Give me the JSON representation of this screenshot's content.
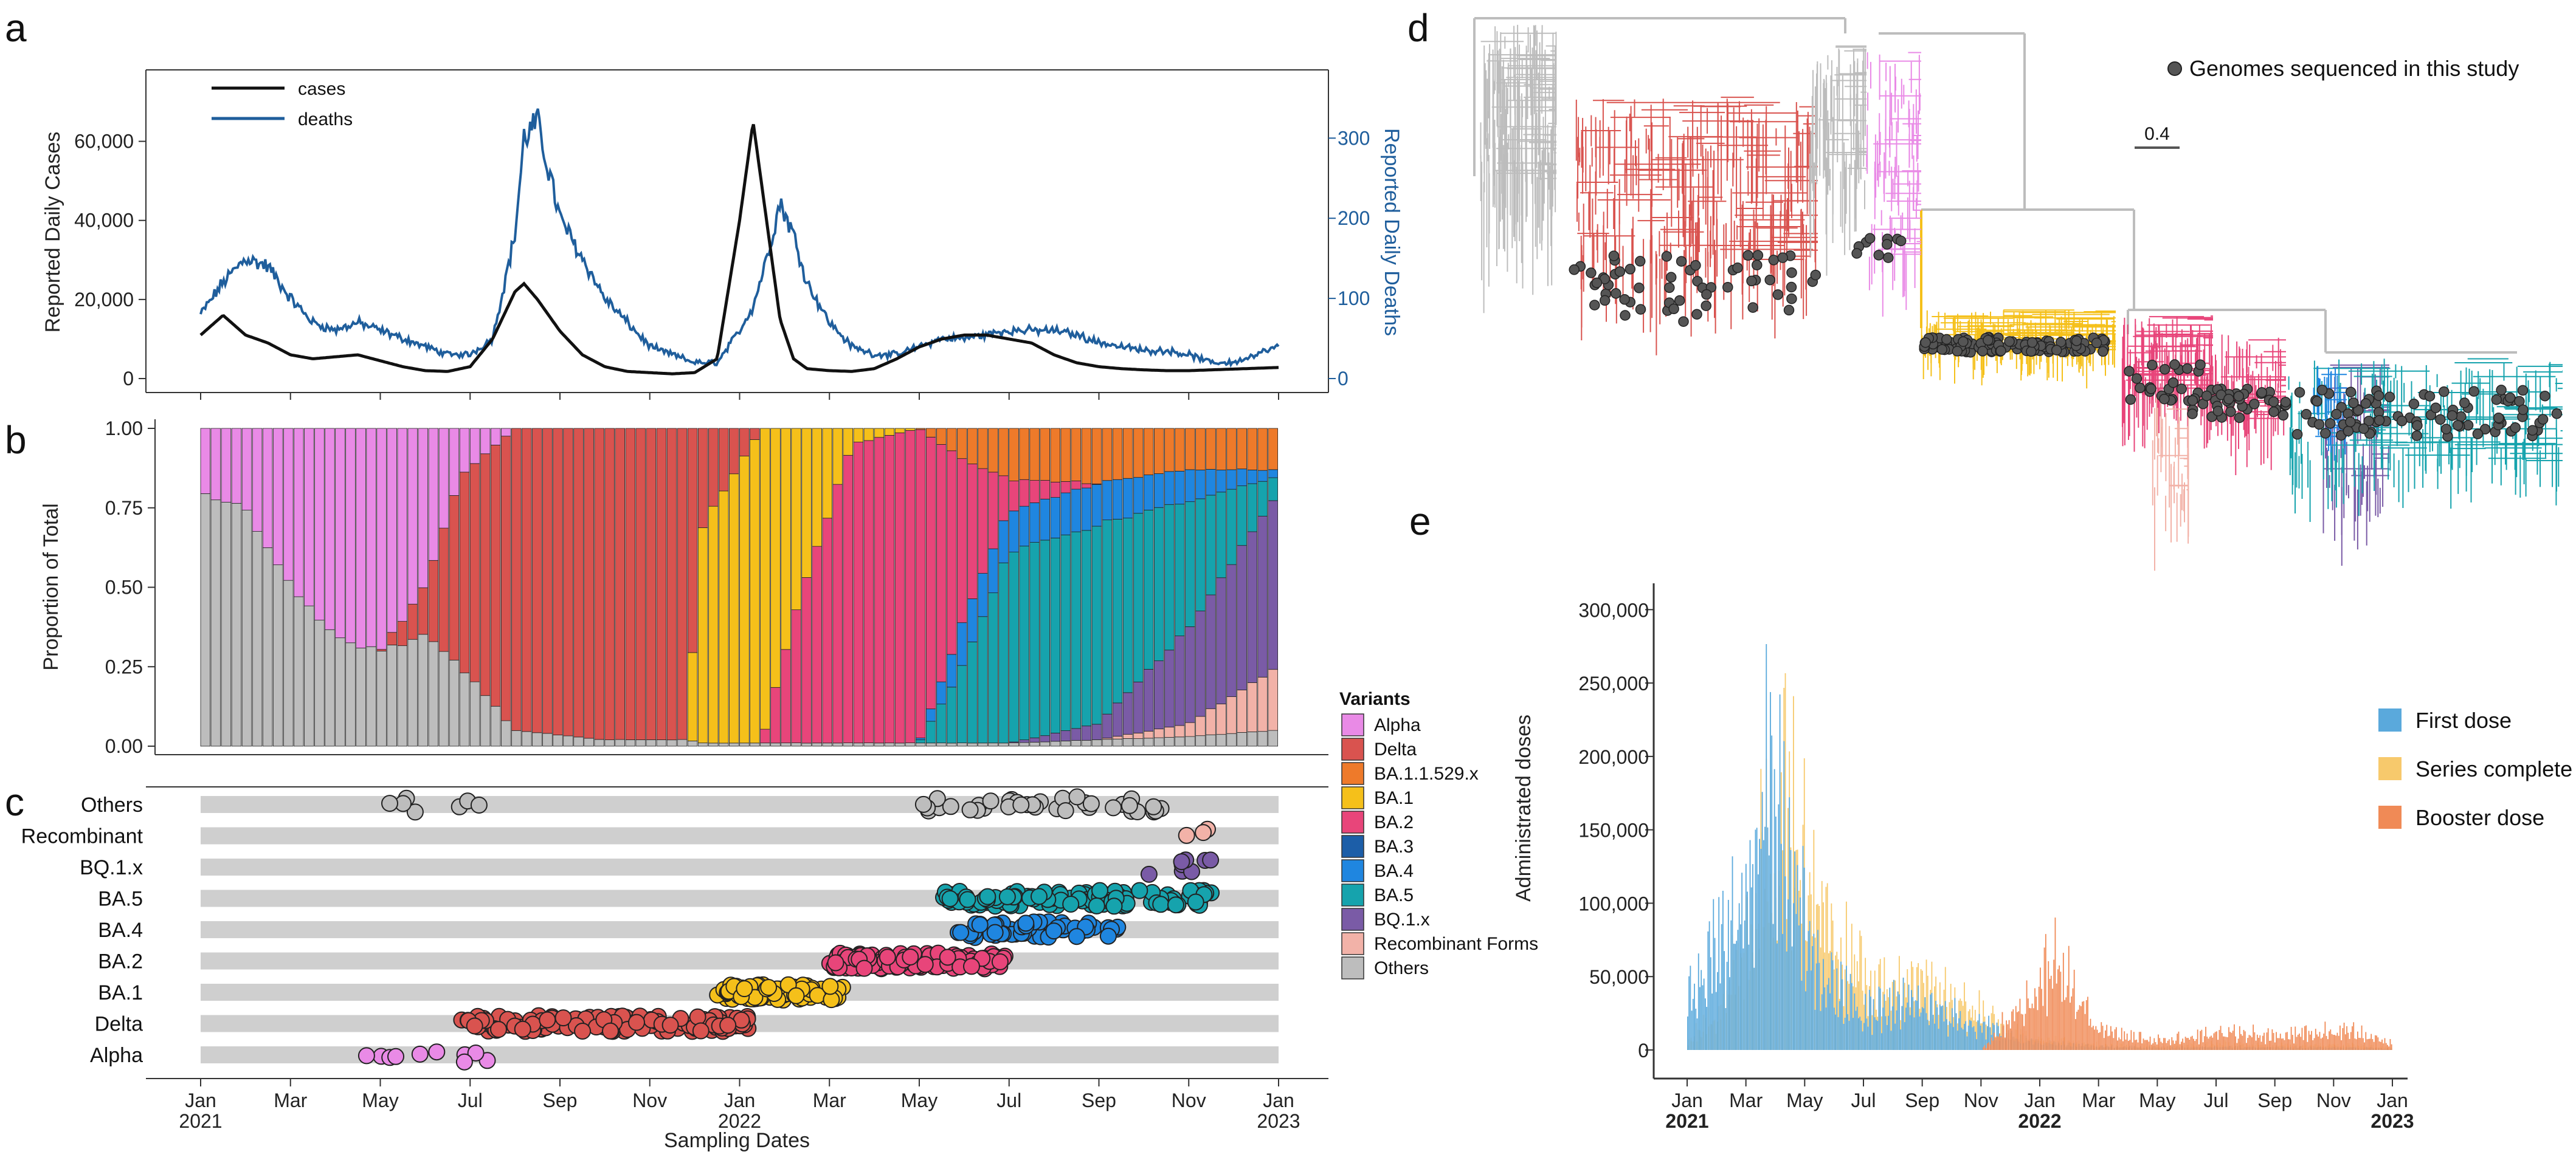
{
  "panels": {
    "a": "a",
    "b": "b",
    "c": "c",
    "d": "d",
    "e": "e"
  },
  "colors": {
    "Alpha": "#e98ae6",
    "Delta": "#d9534f",
    "BA.1.1.529.x": "#ee7a2a",
    "BA.1": "#f5c01a",
    "BA.2": "#e8457a",
    "BA.3": "#1c5ea8",
    "BA.4": "#1f86e0",
    "BA.5": "#16a3ad",
    "BQ.1.x": "#7a5ba6",
    "Recombinant Forms": "#f2b2a8",
    "Others": "#bdbdbd",
    "cases": "#111111",
    "deaths": "#1f5e9c",
    "first": "#5aa9dc",
    "series": "#f7c96c",
    "booster": "#f08a56"
  },
  "time_axis": {
    "ticks": [
      {
        "m": 0,
        "label": "Jan",
        "year": "2021"
      },
      {
        "m": 2,
        "label": "Mar"
      },
      {
        "m": 4,
        "label": "May"
      },
      {
        "m": 6,
        "label": "Jul"
      },
      {
        "m": 8,
        "label": "Sep"
      },
      {
        "m": 10,
        "label": "Nov"
      },
      {
        "m": 12,
        "label": "Jan",
        "year": "2022"
      },
      {
        "m": 14,
        "label": "Mar"
      },
      {
        "m": 16,
        "label": "May"
      },
      {
        "m": 18,
        "label": "Jul"
      },
      {
        "m": 20,
        "label": "Sep"
      },
      {
        "m": 22,
        "label": "Nov"
      },
      {
        "m": 24,
        "label": "Jan",
        "year": "2023"
      }
    ],
    "xlabel": "Sampling Dates"
  },
  "chart_data": [
    {
      "id": "a",
      "type": "line",
      "title": "",
      "ylabel": "Reported Daily Cases",
      "y2label": "Reported Daily Deaths",
      "ylim": [
        0,
        75000
      ],
      "y2lim": [
        0,
        370
      ],
      "yticks": [
        "0",
        "20,000",
        "40,000",
        "60,000"
      ],
      "yticks_vals": [
        0,
        20000,
        40000,
        60000
      ],
      "y2ticks": [
        "0",
        "100",
        "200",
        "300"
      ],
      "y2ticks_vals": [
        0,
        100,
        200,
        300
      ],
      "legend": [
        "cases",
        "deaths"
      ],
      "x_months": [
        0,
        0.5,
        1,
        1.5,
        2,
        2.5,
        3,
        3.5,
        4,
        4.5,
        5,
        5.5,
        6,
        6.5,
        7,
        7.2,
        7.5,
        8,
        8.5,
        9,
        9.5,
        10,
        10.5,
        11,
        11.5,
        12,
        12.3,
        12.6,
        12.9,
        13.2,
        13.5,
        14,
        14.5,
        15,
        15.5,
        16,
        16.5,
        17,
        17.5,
        18,
        18.5,
        19,
        19.5,
        20,
        20.5,
        21,
        21.5,
        22,
        22.5,
        23,
        23.5,
        24
      ],
      "series": [
        {
          "name": "cases",
          "axis": "left",
          "values": [
            11000,
            16000,
            11000,
            9000,
            6000,
            5000,
            5500,
            6000,
            4500,
            3000,
            2000,
            1800,
            3000,
            10000,
            22000,
            24000,
            20000,
            12000,
            6000,
            3000,
            1800,
            1500,
            1200,
            1500,
            5000,
            40000,
            65000,
            40000,
            15000,
            5000,
            2500,
            2000,
            1800,
            2500,
            5000,
            8000,
            10000,
            11000,
            11000,
            10000,
            9000,
            6000,
            4000,
            3000,
            2500,
            2200,
            2000,
            2000,
            2200,
            2400,
            2600,
            2800
          ]
        },
        {
          "name": "deaths",
          "axis": "right",
          "values": [
            80,
            120,
            150,
            140,
            100,
            70,
            60,
            70,
            60,
            50,
            40,
            30,
            30,
            50,
            180,
            300,
            320,
            200,
            150,
            100,
            70,
            40,
            30,
            20,
            20,
            60,
            90,
            150,
            220,
            180,
            120,
            70,
            40,
            30,
            30,
            40,
            50,
            50,
            55,
            60,
            60,
            60,
            55,
            45,
            40,
            35,
            35,
            30,
            20,
            20,
            30,
            40
          ]
        }
      ]
    },
    {
      "id": "b",
      "type": "bar",
      "ylabel": "Proportion of Total",
      "ylim": [
        0,
        1
      ],
      "yticks": [
        "0.00",
        "0.25",
        "0.50",
        "0.75",
        "1.00"
      ],
      "yticks_vals": [
        0,
        0.25,
        0.5,
        0.75,
        1
      ],
      "stack_order": [
        "Others",
        "Recombinant Forms",
        "BQ.1.x",
        "BA.5",
        "BA.4",
        "BA.3",
        "BA.2",
        "BA.1",
        "BA.1.1.529.x",
        "Delta",
        "Alpha"
      ],
      "keyframes": [
        {
          "m": 0,
          "Others": 0.8,
          "Alpha": 0.2
        },
        {
          "m": 1,
          "Others": 0.75,
          "Alpha": 0.25
        },
        {
          "m": 2,
          "Others": 0.5,
          "Alpha": 0.5
        },
        {
          "m": 3,
          "Others": 0.35,
          "Alpha": 0.65
        },
        {
          "m": 4,
          "Others": 0.3,
          "Alpha": 0.7
        },
        {
          "m": 5,
          "Others": 0.35,
          "Alpha": 0.5,
          "Delta": 0.15
        },
        {
          "m": 5.8,
          "Others": 0.25,
          "Alpha": 0.15,
          "Delta": 0.6
        },
        {
          "m": 7,
          "Others": 0.05,
          "Delta": 0.95
        },
        {
          "m": 9,
          "Others": 0.02,
          "Delta": 0.98
        },
        {
          "m": 10.8,
          "Others": 0.02,
          "Delta": 0.98
        },
        {
          "m": 11.2,
          "Others": 0.01,
          "Delta": 0.3,
          "BA.1": 0.69
        },
        {
          "m": 12.5,
          "Others": 0.01,
          "BA.1": 0.99
        },
        {
          "m": 13.2,
          "Others": 0.01,
          "BA.1": 0.6,
          "BA.2": 0.39
        },
        {
          "m": 14.5,
          "Others": 0.01,
          "BA.1": 0.05,
          "BA.2": 0.94
        },
        {
          "m": 16,
          "Others": 0.01,
          "BA.2": 0.99
        },
        {
          "m": 17,
          "Others": 0.01,
          "BA.2": 0.5,
          "BA.5": 0.25,
          "BA.4": 0.14,
          "BA.1.1.529.x": 0.1
        },
        {
          "m": 18,
          "Others": 0.01,
          "BA.2": 0.1,
          "BA.5": 0.6,
          "BA.4": 0.13,
          "BA.1.1.529.x": 0.16
        },
        {
          "m": 20,
          "Others": 0.02,
          "BA.5": 0.63,
          "BA.4": 0.13,
          "BQ.1.x": 0.05,
          "BA.1.1.529.x": 0.17
        },
        {
          "m": 22,
          "Others": 0.03,
          "BA.5": 0.4,
          "BA.4": 0.1,
          "BQ.1.x": 0.3,
          "Recombinant Forms": 0.04,
          "BA.1.1.529.x": 0.13
        },
        {
          "m": 24,
          "Others": 0.05,
          "BA.5": 0.05,
          "BA.4": 0.02,
          "BQ.1.x": 0.55,
          "Recombinant Forms": 0.2,
          "BA.1.1.529.x": 0.13
        }
      ],
      "legend_title": "Variants",
      "legend": [
        "Alpha",
        "Delta",
        "BA.1.1.529.x",
        "BA.1",
        "BA.2",
        "BA.3",
        "BA.4",
        "BA.5",
        "BQ.1.x",
        "Recombinant Forms",
        "Others"
      ]
    },
    {
      "id": "c",
      "type": "scatter",
      "rows": [
        "Others",
        "Recombinant",
        "BQ.1.x",
        "BA.5",
        "BA.4",
        "BA.2",
        "BA.1",
        "Delta",
        "Alpha"
      ],
      "row_colors": [
        "Others",
        "Recombinant Forms",
        "BQ.1.x",
        "BA.5",
        "BA.4",
        "BA.2",
        "BA.1",
        "Delta",
        "Alpha"
      ],
      "ranges": [
        {
          "row": "Others",
          "segments": [
            [
              3.5,
              6.3,
              7
            ],
            [
              16,
              21.5,
              40
            ]
          ]
        },
        {
          "row": "Recombinant",
          "segments": [
            [
              21.5,
              22.5,
              3
            ]
          ]
        },
        {
          "row": "BQ.1.x",
          "segments": [
            [
              20.5,
              22.5,
              8
            ]
          ]
        },
        {
          "row": "BA.5",
          "segments": [
            [
              16.5,
              22.5,
              120
            ]
          ]
        },
        {
          "row": "BA.4",
          "segments": [
            [
              16.5,
              20.5,
              55
            ]
          ]
        },
        {
          "row": "BA.2",
          "segments": [
            [
              14,
              18,
              110
            ]
          ]
        },
        {
          "row": "BA.1",
          "segments": [
            [
              11.5,
              14.3,
              75
            ]
          ]
        },
        {
          "row": "Delta",
          "segments": [
            [
              5.8,
              12.2,
              140
            ]
          ]
        },
        {
          "row": "Alpha",
          "segments": [
            [
              3.5,
              6.7,
              10
            ]
          ]
        }
      ]
    },
    {
      "id": "e",
      "type": "bar",
      "ylabel": "Administrated doses",
      "ylim": [
        0,
        320000
      ],
      "yticks": [
        "0",
        "50,000",
        "100,000",
        "150,000",
        "200,000",
        "250,000",
        "300,000"
      ],
      "yticks_vals": [
        0,
        50000,
        100000,
        150000,
        200000,
        250000,
        300000
      ],
      "legend": [
        "First dose",
        "Series complete",
        "Booster dose"
      ],
      "keyframes": [
        {
          "m": 0,
          "first": 40000,
          "series": 10000,
          "booster": 0
        },
        {
          "m": 1,
          "first": 80000,
          "series": 30000,
          "booster": 0
        },
        {
          "m": 2,
          "first": 140000,
          "series": 90000,
          "booster": 0
        },
        {
          "m": 2.8,
          "first": 230000,
          "series": 170000,
          "booster": 0
        },
        {
          "m": 3.5,
          "first": 140000,
          "series": 200000,
          "booster": 0
        },
        {
          "m": 4.5,
          "first": 60000,
          "series": 110000,
          "booster": 0
        },
        {
          "m": 6,
          "first": 30000,
          "series": 60000,
          "booster": 0
        },
        {
          "m": 8,
          "first": 40000,
          "series": 50000,
          "booster": 0
        },
        {
          "m": 10,
          "first": 20000,
          "series": 30000,
          "booster": 0
        },
        {
          "m": 11.5,
          "first": 8000,
          "series": 10000,
          "booster": 40000
        },
        {
          "m": 12.5,
          "first": 5000,
          "series": 8000,
          "booster": 70000
        },
        {
          "m": 14,
          "first": 3000,
          "series": 4000,
          "booster": 15000
        },
        {
          "m": 16,
          "first": 2000,
          "series": 3000,
          "booster": 8000
        },
        {
          "m": 18,
          "first": 2500,
          "series": 5000,
          "booster": 14000
        },
        {
          "m": 20,
          "first": 2000,
          "series": 4000,
          "booster": 12000
        },
        {
          "m": 22.5,
          "first": 2000,
          "series": 4000,
          "booster": 16000
        },
        {
          "m": 24,
          "first": 1000,
          "series": 2000,
          "booster": 5000
        }
      ]
    },
    {
      "id": "d",
      "type": "tree",
      "legend": "Genomes sequenced in this study",
      "scale_label": "0.4"
    }
  ]
}
